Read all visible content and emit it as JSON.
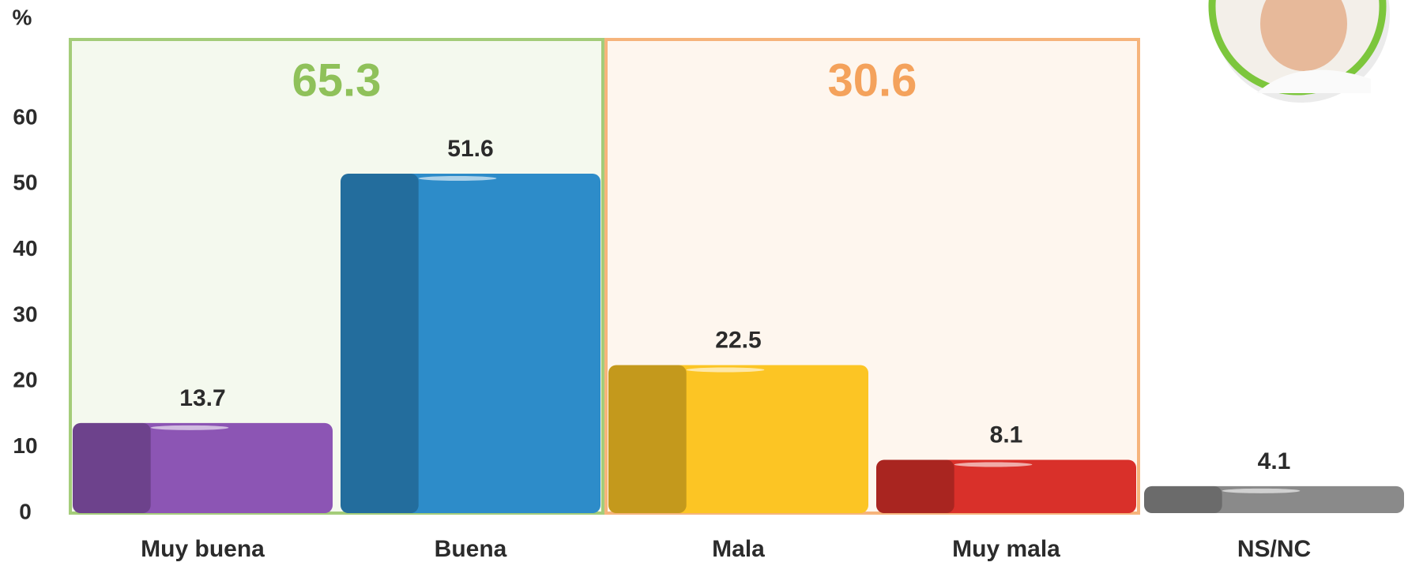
{
  "chart_data": {
    "type": "bar",
    "y_label": "%",
    "categories": [
      "Muy buena",
      "Buena",
      "Mala",
      "Muy mala",
      "NS/NC"
    ],
    "values": [
      13.7,
      51.6,
      22.5,
      8.1,
      4.1
    ],
    "colors": [
      "#8c55b4",
      "#2d8cc9",
      "#fcc524",
      "#d9302a",
      "#8a8a8a"
    ],
    "ylim": [
      0,
      72
    ],
    "yticks": [
      0,
      10,
      20,
      30,
      40,
      50,
      60
    ],
    "groups": [
      {
        "value": 65.3,
        "color": "#8fc15a",
        "members": [
          "Muy buena",
          "Buena"
        ]
      },
      {
        "value": 30.6,
        "color": "#f4a25c",
        "members": [
          "Mala",
          "Muy mala"
        ]
      }
    ]
  }
}
